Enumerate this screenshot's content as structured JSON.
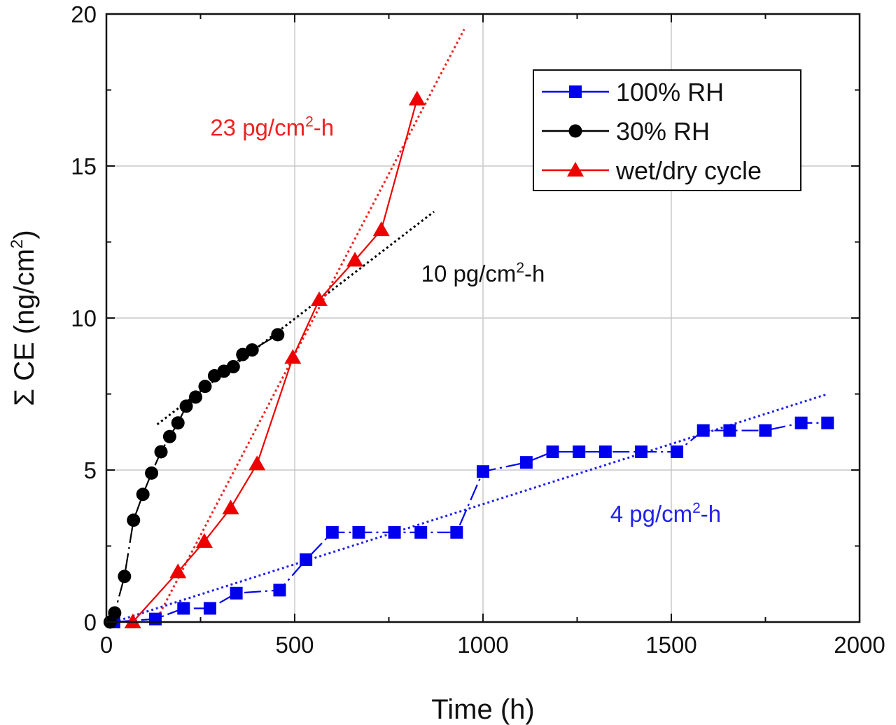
{
  "chart_data": {
    "type": "line",
    "title": "",
    "xlabel": "Time (h)",
    "ylabel_prefix": "Σ CE (ng/cm",
    "ylabel_sup": "2",
    "ylabel_suffix": ")",
    "xlim": [
      0,
      2000
    ],
    "ylim": [
      0,
      20
    ],
    "xticks": [
      0,
      500,
      1000,
      1500,
      2000
    ],
    "yticks": [
      0,
      5,
      10,
      15,
      20
    ],
    "grid": true,
    "legend_position": "top-right",
    "series": [
      {
        "name": "100% RH",
        "color": "#0000ee",
        "marker": "square",
        "line": "dash-dot",
        "x": [
          20,
          130,
          205,
          275,
          345,
          460,
          530,
          600,
          670,
          765,
          835,
          930,
          1000,
          1115,
          1185,
          1255,
          1325,
          1420,
          1515,
          1585,
          1655,
          1750,
          1845,
          1915
        ],
        "y": [
          0.0,
          0.1,
          0.45,
          0.45,
          0.95,
          1.05,
          2.05,
          2.95,
          2.95,
          2.95,
          2.95,
          2.95,
          4.95,
          5.25,
          5.6,
          5.6,
          5.6,
          5.6,
          5.6,
          6.3,
          6.3,
          6.3,
          6.55,
          6.55
        ]
      },
      {
        "name": "30% RH",
        "color": "#000000",
        "marker": "circle",
        "line": "dash-dot",
        "x": [
          10,
          22,
          48,
          72,
          97,
          120,
          145,
          168,
          190,
          212,
          237,
          262,
          287,
          312,
          337,
          362,
          387,
          455
        ],
        "y": [
          0.0,
          0.3,
          1.5,
          3.35,
          4.2,
          4.9,
          5.6,
          6.1,
          6.55,
          7.1,
          7.4,
          7.75,
          8.1,
          8.25,
          8.4,
          8.8,
          8.95,
          9.45
        ]
      },
      {
        "name": "wet/dry cycle",
        "color": "#ee0000",
        "marker": "triangle",
        "line": "solid",
        "x": [
          70,
          190,
          260,
          330,
          400,
          495,
          565,
          660,
          730,
          825
        ],
        "y": [
          0.0,
          1.65,
          2.65,
          3.75,
          5.2,
          8.7,
          10.6,
          11.9,
          12.9,
          17.2
        ]
      }
    ],
    "trendlines": [
      {
        "series": "100% RH",
        "color": "#2222ee",
        "x": [
          20,
          1915
        ],
        "y": [
          0.0,
          7.5
        ]
      },
      {
        "series": "30% RH",
        "color": "#000000",
        "x": [
          135,
          870
        ],
        "y": [
          6.5,
          13.5
        ]
      },
      {
        "series": "wet/dry cycle",
        "color": "#ee2222",
        "x": [
          130,
          950
        ],
        "y": [
          0.0,
          19.5
        ]
      }
    ],
    "annotations": [
      {
        "id": "rate-red",
        "color": "#ee2222",
        "x": 440,
        "y": 16.0,
        "prefix": "23 pg/cm",
        "sup": "2",
        "suffix": "-h"
      },
      {
        "id": "rate-black",
        "color": "#111111",
        "x": 1000,
        "y": 11.2,
        "prefix": "10 pg/cm",
        "sup": "2",
        "suffix": "-h"
      },
      {
        "id": "rate-blue",
        "color": "#2222ee",
        "x": 1485,
        "y": 3.3,
        "prefix": "4 pg/cm",
        "sup": "2",
        "suffix": "-h"
      }
    ]
  }
}
